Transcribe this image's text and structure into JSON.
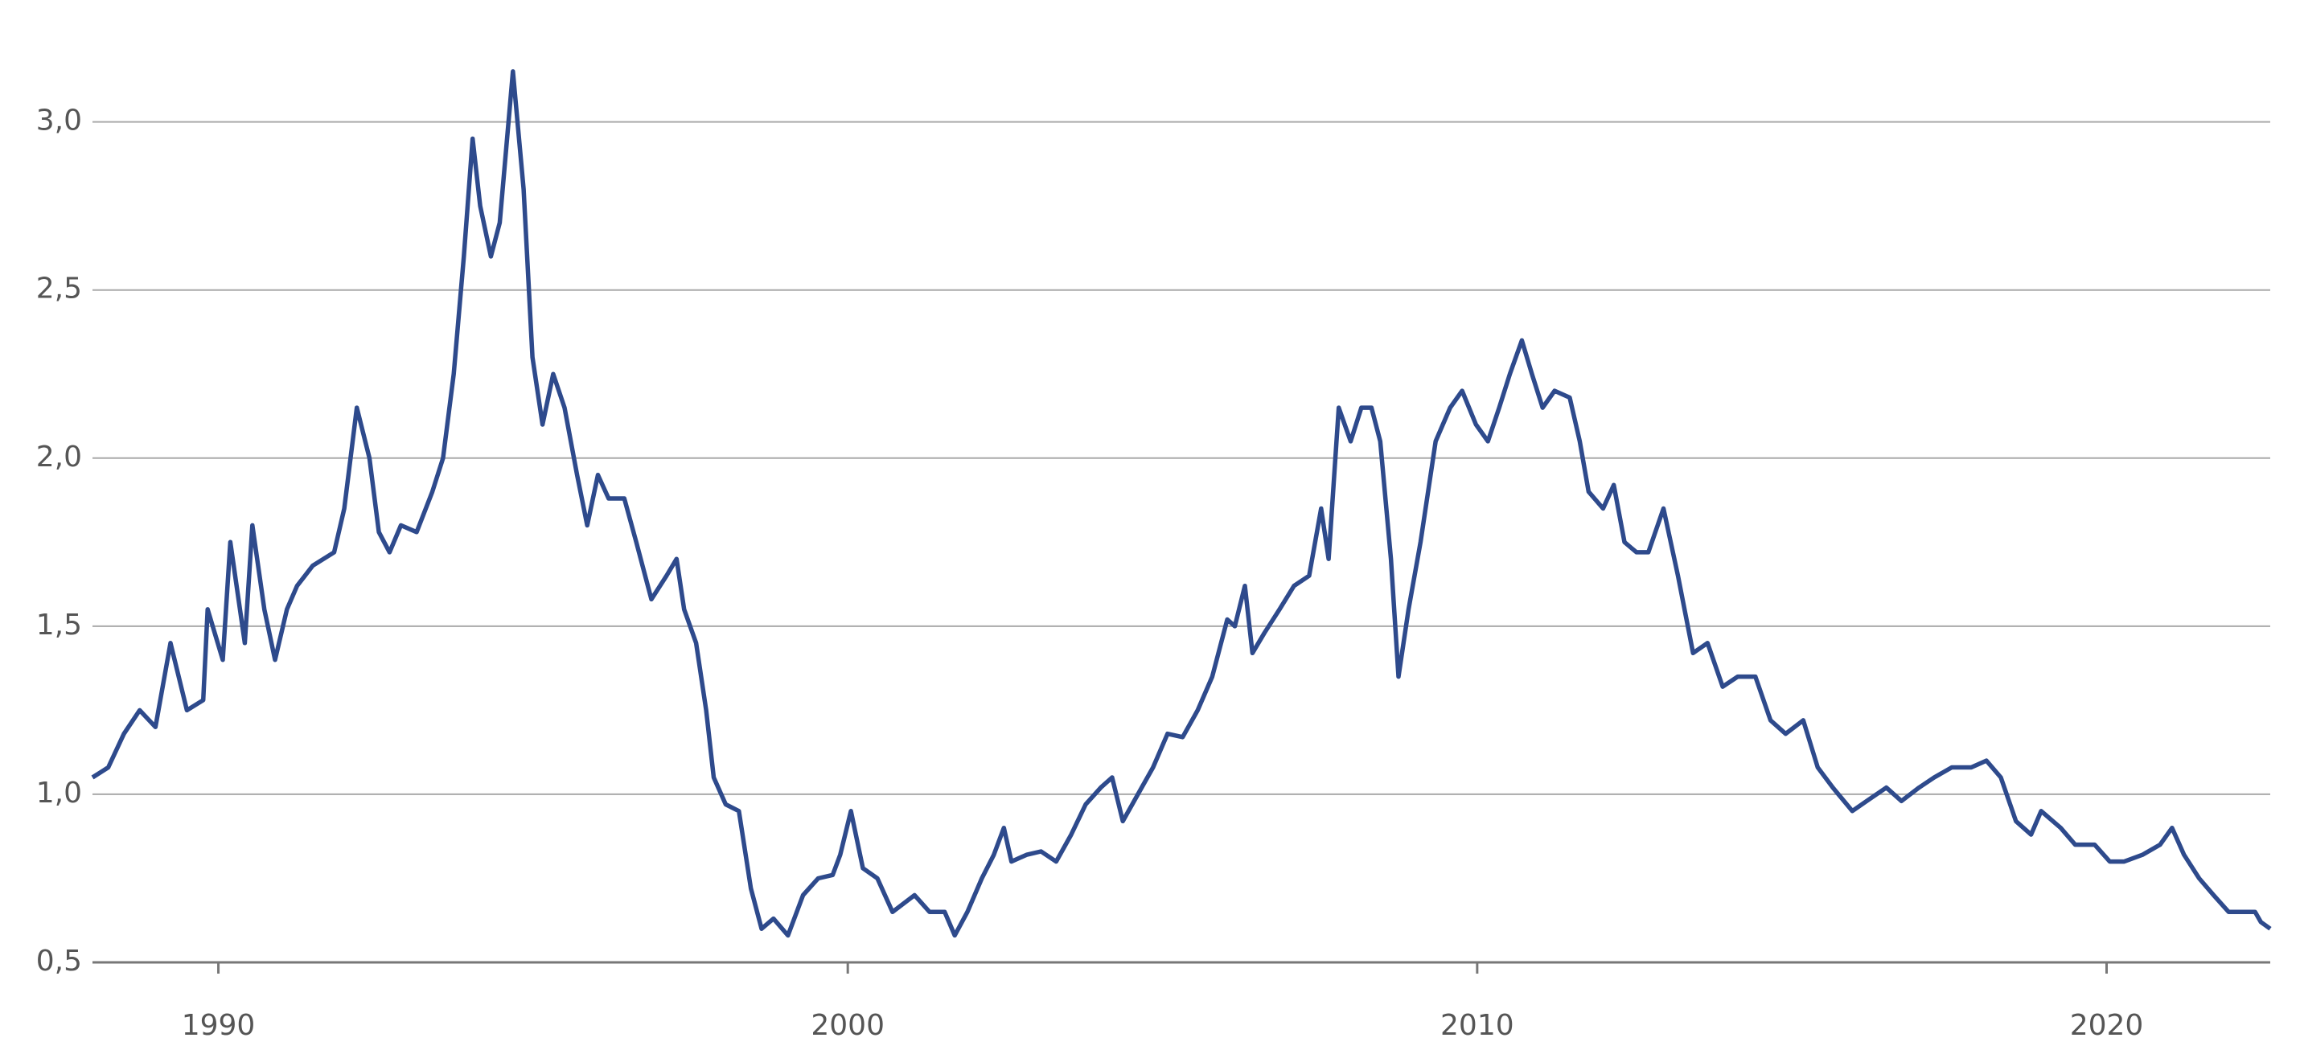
{
  "chart_data": {
    "type": "line",
    "x": [
      1988.0,
      1988.25,
      1988.5,
      1988.75,
      1989.0,
      1989.24,
      1989.5,
      1989.76,
      1989.83,
      1990.07,
      1990.19,
      1990.42,
      1990.54,
      1990.73,
      1990.9,
      1991.09,
      1991.25,
      1991.5,
      1991.84,
      1992.0,
      1992.2,
      1992.4,
      1992.55,
      1992.72,
      1992.9,
      1993.15,
      1993.4,
      1993.57,
      1993.74,
      1993.9,
      1994.04,
      1994.16,
      1994.33,
      1994.47,
      1994.68,
      1994.85,
      1994.99,
      1995.15,
      1995.32,
      1995.5,
      1995.7,
      1995.86,
      1996.03,
      1996.2,
      1996.45,
      1996.64,
      1996.88,
      1997.12,
      1997.28,
      1997.4,
      1997.59,
      1997.75,
      1997.87,
      1998.06,
      1998.27,
      1998.46,
      1998.63,
      1998.82,
      1999.05,
      1999.29,
      1999.53,
      1999.76,
      1999.88,
      2000.05,
      2000.24,
      2000.47,
      2000.71,
      2001.06,
      2001.3,
      2001.54,
      2001.7,
      2001.9,
      2002.13,
      2002.32,
      2002.48,
      2002.6,
      2002.84,
      2003.07,
      2003.31,
      2003.55,
      2003.78,
      2004.02,
      2004.2,
      2004.37,
      2004.61,
      2004.85,
      2005.08,
      2005.32,
      2005.56,
      2005.79,
      2006.03,
      2006.15,
      2006.31,
      2006.43,
      2006.62,
      2006.86,
      2007.09,
      2007.33,
      2007.52,
      2007.64,
      2007.8,
      2007.99,
      2008.16,
      2008.32,
      2008.46,
      2008.63,
      2008.75,
      2008.91,
      2009.1,
      2009.34,
      2009.57,
      2009.76,
      2009.98,
      2010.17,
      2010.35,
      2010.52,
      2010.71,
      2010.87,
      2011.04,
      2011.23,
      2011.47,
      2011.63,
      2011.77,
      2012.0,
      2012.17,
      2012.34,
      2012.53,
      2012.72,
      2012.96,
      2013.19,
      2013.43,
      2013.66,
      2013.9,
      2014.14,
      2014.42,
      2014.66,
      2014.9,
      2015.18,
      2015.41,
      2015.65,
      2015.96,
      2016.19,
      2016.5,
      2016.74,
      2017.02,
      2017.26,
      2017.54,
      2017.85,
      2018.09,
      2018.32,
      2018.56,
      2018.8,
      2018.96,
      2019.27,
      2019.5,
      2019.81,
      2020.05,
      2020.28,
      2020.57,
      2020.85,
      2021.04,
      2021.23,
      2021.47,
      2021.7,
      2021.94,
      2022.17,
      2022.36,
      2022.45,
      2022.6
    ],
    "series": [
      {
        "color": "#2e4a8c",
        "values": [
          1.05,
          1.08,
          1.18,
          1.25,
          1.2,
          1.45,
          1.25,
          1.28,
          1.55,
          1.4,
          1.75,
          1.45,
          1.8,
          1.55,
          1.4,
          1.55,
          1.62,
          1.68,
          1.72,
          1.85,
          2.15,
          2.0,
          1.78,
          1.72,
          1.8,
          1.78,
          1.9,
          2.0,
          2.25,
          2.6,
          2.95,
          2.75,
          2.6,
          2.7,
          3.15,
          2.8,
          2.3,
          2.1,
          2.25,
          2.15,
          1.95,
          1.8,
          1.95,
          1.88,
          1.88,
          1.75,
          1.58,
          1.65,
          1.7,
          1.55,
          1.45,
          1.25,
          1.05,
          0.97,
          0.95,
          0.72,
          0.6,
          0.63,
          0.58,
          0.7,
          0.75,
          0.76,
          0.82,
          0.95,
          0.78,
          0.75,
          0.65,
          0.7,
          0.65,
          0.65,
          0.58,
          0.65,
          0.75,
          0.82,
          0.9,
          0.8,
          0.82,
          0.83,
          0.8,
          0.88,
          0.97,
          1.02,
          1.05,
          0.92,
          1.0,
          1.08,
          1.18,
          1.17,
          1.25,
          1.35,
          1.52,
          1.5,
          1.62,
          1.42,
          1.48,
          1.55,
          1.62,
          1.65,
          1.85,
          1.7,
          2.15,
          2.05,
          2.15,
          2.15,
          2.05,
          1.7,
          1.35,
          1.55,
          1.75,
          2.05,
          2.15,
          2.2,
          2.1,
          2.05,
          2.15,
          2.25,
          2.35,
          2.25,
          2.15,
          2.2,
          2.18,
          2.05,
          1.9,
          1.85,
          1.92,
          1.75,
          1.72,
          1.72,
          1.85,
          1.65,
          1.42,
          1.45,
          1.32,
          1.35,
          1.35,
          1.22,
          1.18,
          1.22,
          1.08,
          1.02,
          0.95,
          0.98,
          1.02,
          0.98,
          1.02,
          1.05,
          1.08,
          1.08,
          1.1,
          1.05,
          0.92,
          0.88,
          0.95,
          0.9,
          0.85,
          0.85,
          0.8,
          0.8,
          0.82,
          0.85,
          0.9,
          0.82,
          0.75,
          0.7,
          0.65,
          0.65,
          0.65,
          0.62,
          0.6
        ]
      }
    ],
    "xlim": [
      1988.0,
      2022.6
    ],
    "xticks": [
      1990,
      2000,
      2010,
      2020
    ],
    "ylim": [
      0.5,
      3.2
    ],
    "yticks": [
      {
        "value": 0.5,
        "label": "0,5"
      },
      {
        "value": 1.0,
        "label": "1,0"
      },
      {
        "value": 1.5,
        "label": "1,5"
      },
      {
        "value": 2.0,
        "label": "2,0"
      },
      {
        "value": 2.5,
        "label": "2,5"
      },
      {
        "value": 3.0,
        "label": "3,0"
      }
    ],
    "grid": true
  }
}
